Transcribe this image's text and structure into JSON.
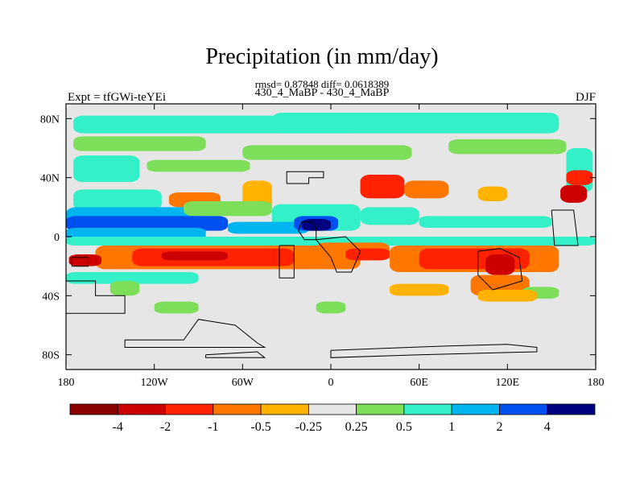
{
  "chart_data": {
    "type": "heatmap",
    "title": "Precipitation (in mm/day)",
    "stats_line": "rmsd= 0.87848 diff= 0.0618389",
    "subtitle": "430_4_MaBP - 430_4_MaBP",
    "left_label": "Expt = tfGWi-teYEi",
    "right_label": "DJF",
    "xlabel": "",
    "ylabel": "",
    "xlim": [
      -180,
      180
    ],
    "ylim": [
      -90,
      90
    ],
    "x_ticks": [
      {
        "value": -180,
        "label": "180"
      },
      {
        "value": -120,
        "label": "120W"
      },
      {
        "value": -60,
        "label": "60W"
      },
      {
        "value": 0,
        "label": "0"
      },
      {
        "value": 60,
        "label": "60E"
      },
      {
        "value": 120,
        "label": "120E"
      },
      {
        "value": 180,
        "label": "180"
      }
    ],
    "y_ticks": [
      {
        "value": 80,
        "label": "80N"
      },
      {
        "value": 40,
        "label": "40N"
      },
      {
        "value": 0,
        "label": "0"
      },
      {
        "value": -40,
        "label": "40S"
      },
      {
        "value": -80,
        "label": "80S"
      }
    ],
    "colorbar": {
      "labels": [
        "-4",
        "-2",
        "-1",
        "-0.5",
        "-0.25",
        "0.25",
        "0.5",
        "1",
        "2",
        "4"
      ],
      "colors": [
        "#8b0000",
        "#cc0000",
        "#ff2200",
        "#ff7700",
        "#ffb300",
        "#e6e6e6",
        "#7dde5a",
        "#33f0c8",
        "#00b4f0",
        "#0050f0",
        "#000080"
      ]
    },
    "fields": [
      {
        "lon": -180,
        "lat": 90,
        "w": 360,
        "h": 180,
        "class": 5
      },
      {
        "lon": -175,
        "lat": 82,
        "w": 195,
        "h": 12,
        "class": 7
      },
      {
        "lon": -40,
        "lat": 84,
        "w": 195,
        "h": 14,
        "class": 7
      },
      {
        "lon": -175,
        "lat": 68,
        "w": 90,
        "h": 10,
        "class": 6
      },
      {
        "lon": -60,
        "lat": 62,
        "w": 115,
        "h": 10,
        "class": 6
      },
      {
        "lon": 80,
        "lat": 66,
        "w": 80,
        "h": 10,
        "class": 6
      },
      {
        "lon": -175,
        "lat": 55,
        "w": 45,
        "h": 18,
        "class": 7
      },
      {
        "lon": -125,
        "lat": 52,
        "w": 70,
        "h": 8,
        "class": 6
      },
      {
        "lon": 160,
        "lat": 60,
        "w": 18,
        "h": 30,
        "class": 7
      },
      {
        "lon": -175,
        "lat": 32,
        "w": 60,
        "h": 14,
        "class": 7
      },
      {
        "lon": -110,
        "lat": 30,
        "w": 35,
        "h": 10,
        "class": 3
      },
      {
        "lon": -60,
        "lat": 38,
        "w": 20,
        "h": 20,
        "class": 4
      },
      {
        "lon": 20,
        "lat": 42,
        "w": 30,
        "h": 16,
        "class": 2
      },
      {
        "lon": 50,
        "lat": 38,
        "w": 30,
        "h": 12,
        "class": 3
      },
      {
        "lon": 100,
        "lat": 34,
        "w": 20,
        "h": 10,
        "class": 4
      },
      {
        "lon": 160,
        "lat": 45,
        "w": 18,
        "h": 10,
        "class": 2
      },
      {
        "lon": 156,
        "lat": 35,
        "w": 18,
        "h": 12,
        "class": 1
      },
      {
        "lon": -180,
        "lat": 20,
        "w": 90,
        "h": 14,
        "class": 8
      },
      {
        "lon": -100,
        "lat": 24,
        "w": 60,
        "h": 10,
        "class": 6
      },
      {
        "lon": -40,
        "lat": 22,
        "w": 60,
        "h": 18,
        "class": 7
      },
      {
        "lon": 20,
        "lat": 20,
        "w": 40,
        "h": 12,
        "class": 7
      },
      {
        "lon": 60,
        "lat": 14,
        "w": 90,
        "h": 8,
        "class": 7
      },
      {
        "lon": -180,
        "lat": 14,
        "w": 110,
        "h": 10,
        "class": 9
      },
      {
        "lon": -70,
        "lat": 10,
        "w": 55,
        "h": 8,
        "class": 8
      },
      {
        "lon": -25,
        "lat": 14,
        "w": 30,
        "h": 10,
        "class": 9
      },
      {
        "lon": -20,
        "lat": 12,
        "w": 20,
        "h": 8,
        "class": 10
      },
      {
        "lon": -180,
        "lat": 6,
        "w": 95,
        "h": 8,
        "class": 8
      },
      {
        "lon": -180,
        "lat": 0,
        "w": 360,
        "h": 6,
        "class": 7
      },
      {
        "lon": -160,
        "lat": -6,
        "w": 180,
        "h": 16,
        "class": 3
      },
      {
        "lon": -135,
        "lat": -8,
        "w": 110,
        "h": 12,
        "class": 2
      },
      {
        "lon": -115,
        "lat": -10,
        "w": 45,
        "h": 6,
        "class": 1
      },
      {
        "lon": -10,
        "lat": -4,
        "w": 50,
        "h": 12,
        "class": 3
      },
      {
        "lon": 10,
        "lat": -8,
        "w": 30,
        "h": 8,
        "class": 2
      },
      {
        "lon": 40,
        "lat": -6,
        "w": 115,
        "h": 18,
        "class": 3
      },
      {
        "lon": 60,
        "lat": -8,
        "w": 75,
        "h": 14,
        "class": 2
      },
      {
        "lon": 105,
        "lat": -12,
        "w": 20,
        "h": 14,
        "class": 1
      },
      {
        "lon": 95,
        "lat": -26,
        "w": 40,
        "h": 14,
        "class": 3
      },
      {
        "lon": -178,
        "lat": -12,
        "w": 22,
        "h": 8,
        "class": 1
      },
      {
        "lon": -180,
        "lat": -24,
        "w": 90,
        "h": 8,
        "class": 7
      },
      {
        "lon": -150,
        "lat": -30,
        "w": 20,
        "h": 10,
        "class": 6
      },
      {
        "lon": 40,
        "lat": -32,
        "w": 40,
        "h": 8,
        "class": 4
      },
      {
        "lon": 130,
        "lat": -34,
        "w": 25,
        "h": 8,
        "class": 6
      },
      {
        "lon": 100,
        "lat": -36,
        "w": 40,
        "h": 8,
        "class": 4
      },
      {
        "lon": -120,
        "lat": -44,
        "w": 30,
        "h": 8,
        "class": 6
      },
      {
        "lon": -10,
        "lat": -44,
        "w": 20,
        "h": 8,
        "class": 6
      }
    ],
    "coastlines": [
      [
        [
          -30,
          36
        ],
        [
          -15,
          36
        ],
        [
          -15,
          40
        ],
        [
          -5,
          40
        ],
        [
          -5,
          44
        ],
        [
          -30,
          44
        ],
        [
          -30,
          36
        ]
      ],
      [
        [
          -20,
          10
        ],
        [
          -12,
          10
        ],
        [
          -10,
          6
        ],
        [
          -10,
          -2
        ],
        [
          -18,
          -2
        ],
        [
          -22,
          4
        ],
        [
          -20,
          10
        ]
      ],
      [
        [
          -35,
          -6
        ],
        [
          -25,
          -6
        ],
        [
          -25,
          -28
        ],
        [
          -35,
          -28
        ],
        [
          -35,
          -6
        ]
      ],
      [
        [
          -10,
          -2
        ],
        [
          10,
          0
        ],
        [
          20,
          -10
        ],
        [
          14,
          -24
        ],
        [
          4,
          -24
        ],
        [
          0,
          -14
        ],
        [
          -10,
          -2
        ]
      ],
      [
        [
          100,
          -10
        ],
        [
          115,
          -8
        ],
        [
          128,
          -14
        ],
        [
          130,
          -30
        ],
        [
          110,
          -36
        ],
        [
          100,
          -26
        ],
        [
          100,
          -10
        ]
      ],
      [
        [
          150,
          18
        ],
        [
          165,
          18
        ],
        [
          168,
          -6
        ],
        [
          152,
          -6
        ],
        [
          150,
          18
        ]
      ],
      [
        [
          -176,
          -14
        ],
        [
          -165,
          -14
        ],
        [
          -165,
          -20
        ],
        [
          -176,
          -20
        ],
        [
          -176,
          -14
        ]
      ],
      [
        [
          -180,
          -30
        ],
        [
          -160,
          -30
        ],
        [
          -160,
          -40
        ],
        [
          -140,
          -40
        ],
        [
          -140,
          -52
        ],
        [
          -180,
          -52
        ]
      ],
      [
        [
          -140,
          -70
        ],
        [
          -100,
          -70
        ],
        [
          -90,
          -56
        ],
        [
          -65,
          -60
        ],
        [
          -50,
          -72
        ],
        [
          -45,
          -75
        ],
        [
          -140,
          -75
        ],
        [
          -140,
          -70
        ]
      ],
      [
        [
          -85,
          -80
        ],
        [
          -50,
          -78
        ],
        [
          -45,
          -82
        ],
        [
          -85,
          -82
        ],
        [
          -85,
          -80
        ]
      ],
      [
        [
          0,
          -77
        ],
        [
          0,
          -82
        ],
        [
          60,
          -80
        ],
        [
          140,
          -78
        ],
        [
          140,
          -75
        ],
        [
          120,
          -73
        ],
        [
          80,
          -74
        ],
        [
          0,
          -77
        ]
      ]
    ]
  }
}
